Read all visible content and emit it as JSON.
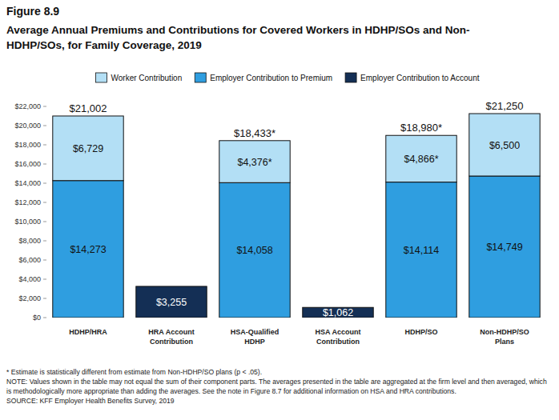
{
  "chart_data": {
    "type": "bar",
    "stacked": true,
    "data_labels": true,
    "grid": false,
    "legend": "top",
    "figure_label": "Figure 8.9",
    "title": "Average Annual Premiums and Contributions for Covered Workers in HDHP/SOs and Non-HDHP/SOs, for Family Coverage, 2019",
    "categories": [
      "HDHP/HRA",
      "HRA Account Contribution",
      "HSA-Qualified HDHP",
      "HSA Account Contribution",
      "HDHP/SO",
      "Non-HDHP/SO Plans"
    ],
    "series": [
      {
        "name": "Worker Contribution",
        "color": "#b3dff5",
        "values": [
          6729,
          null,
          4376,
          null,
          4866,
          6500
        ],
        "value_labels": [
          "$6,729",
          null,
          "$4,376*",
          null,
          "$4,866*",
          "$6,500"
        ]
      },
      {
        "name": "Employer Contribution to Premium",
        "color": "#2f9ee0",
        "values": [
          14273,
          null,
          14058,
          null,
          14114,
          14749
        ],
        "value_labels": [
          "$14,273",
          null,
          "$14,058",
          null,
          "$14,114",
          "$14,749"
        ]
      },
      {
        "name": "Employer Contribution to Account",
        "color": "#142f55",
        "values": [
          null,
          3255,
          null,
          1062,
          null,
          null
        ],
        "value_labels": [
          null,
          "$3,255",
          null,
          "$1,062",
          null,
          null
        ]
      }
    ],
    "totals": [
      21002,
      null,
      18433,
      null,
      18980,
      21250
    ],
    "total_labels": [
      "$21,002",
      null,
      "$18,433*",
      null,
      "$18,980*",
      "$21,250"
    ],
    "ylim": [
      0,
      22000
    ],
    "yticks": [
      {
        "value": 0,
        "label": "$0"
      },
      {
        "value": 2000,
        "label": "$2,000"
      },
      {
        "value": 4000,
        "label": "$4,000"
      },
      {
        "value": 6000,
        "label": "$6,000"
      },
      {
        "value": 8000,
        "label": "$8,000"
      },
      {
        "value": 10000,
        "label": "$10,000"
      },
      {
        "value": 12000,
        "label": "$12,000"
      },
      {
        "value": 14000,
        "label": "$14,000"
      },
      {
        "value": 16000,
        "label": "$16,000"
      },
      {
        "value": 18000,
        "label": "$18,000"
      },
      {
        "value": 20000,
        "label": "$20,000"
      },
      {
        "value": 22000,
        "label": "$22,000"
      }
    ],
    "notes": [
      "* Estimate is statistically different from estimate from Non-HDHP/SO plans (p < .05).",
      "NOTE: Values shown in the table may not equal the sum of their component parts. The averages presented in the table are aggregated at the firm level and then averaged, which is methodologically more appropriate than adding the averages. See the note in Figure 8.7 for additional information on HSA and HRA contributions.",
      "SOURCE: KFF Employer Health Benefits Survey, 2019"
    ]
  }
}
